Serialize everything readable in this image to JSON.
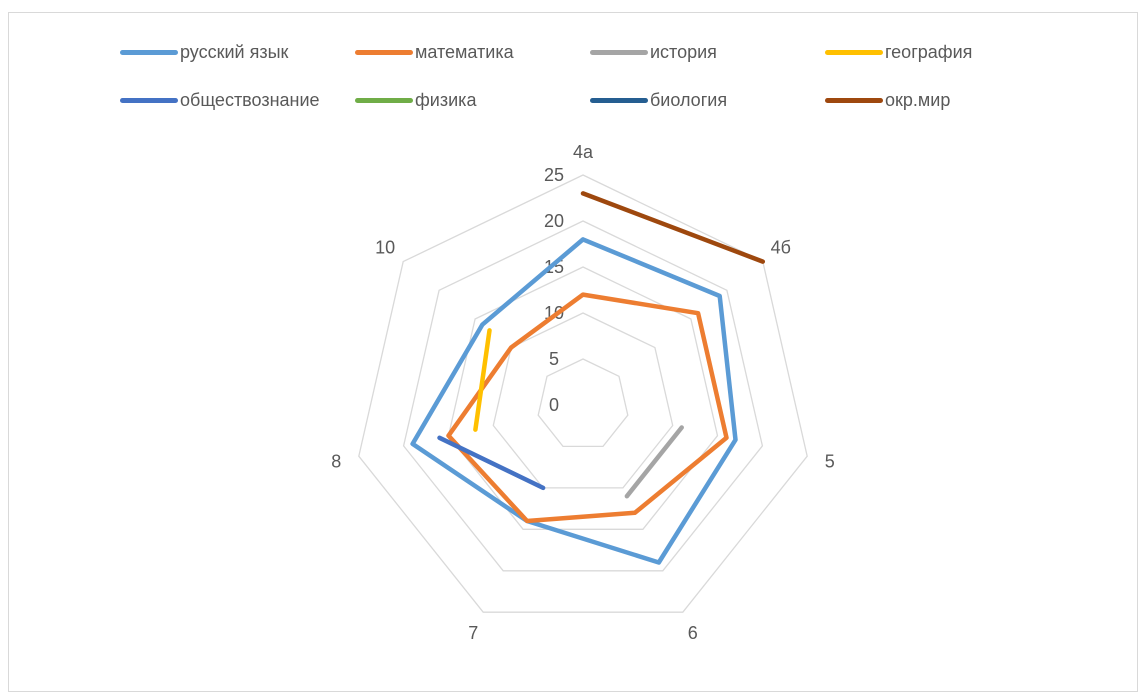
{
  "chart_data": {
    "type": "radar",
    "title": "",
    "categories": [
      "4а",
      "4б",
      "5",
      "6",
      "7",
      "8",
      "10"
    ],
    "radial_ticks": [
      "0",
      "5",
      "10",
      "15",
      "20",
      "25"
    ],
    "rmax": 25,
    "grid": true,
    "legend_position": "top",
    "series": [
      {
        "name": "русский язык",
        "color": "#5B9BD5",
        "values": [
          18,
          19,
          17,
          19,
          14,
          19,
          14
        ]
      },
      {
        "name": "математика",
        "color": "#ED7D31",
        "values": [
          12,
          16,
          16,
          13,
          14,
          15,
          10
        ]
      },
      {
        "name": "история",
        "color": "#A5A5A5",
        "values": [
          null,
          null,
          11,
          11,
          null,
          null,
          null
        ]
      },
      {
        "name": "география",
        "color": "#FFC000",
        "values": [
          null,
          null,
          null,
          null,
          null,
          12,
          13
        ]
      },
      {
        "name": "обществознание",
        "color": "#4472C4",
        "values": [
          null,
          null,
          null,
          null,
          10,
          16,
          null
        ]
      },
      {
        "name": "физика",
        "color": "#70AD47",
        "values": [
          null,
          null,
          null,
          null,
          null,
          null,
          null
        ]
      },
      {
        "name": "биология",
        "color": "#255E91",
        "values": [
          null,
          null,
          null,
          null,
          null,
          null,
          null
        ]
      },
      {
        "name": "окр.мир",
        "color": "#9E480E",
        "values": [
          23,
          25,
          null,
          null,
          null,
          null,
          null
        ]
      }
    ]
  }
}
